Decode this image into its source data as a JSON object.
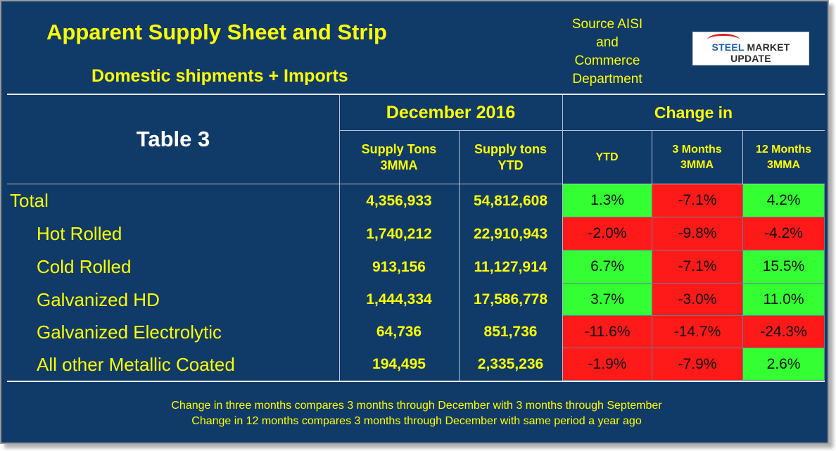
{
  "header": {
    "title": "Apparent Supply Sheet and Strip",
    "subtitle": "Domestic shipments + Imports",
    "source_lines": [
      "Source AISI",
      "and",
      "Commerce",
      "Department"
    ],
    "logo": {
      "part1": "STEEL ",
      "part2": "MARKET UPDATE"
    }
  },
  "table": {
    "label": "Table 3",
    "period_header": "December 2016",
    "change_header": "Change in",
    "columns": {
      "supply_3mma": [
        "Supply Tons",
        "3MMA"
      ],
      "supply_ytd": [
        "Supply tons",
        "YTD"
      ],
      "chg_ytd": [
        "YTD"
      ],
      "chg_3m": [
        "3 Months",
        "3MMA"
      ],
      "chg_12m": [
        "12 Months",
        "3MMA"
      ]
    },
    "rows": [
      {
        "label": "Total",
        "supply_3mma": "4,356,933",
        "supply_ytd": "54,812,608",
        "chg_ytd": "1.3%",
        "chg_3m": "-7.1%",
        "chg_12m": "4.2%"
      },
      {
        "label": "Hot Rolled",
        "supply_3mma": "1,740,212",
        "supply_ytd": "22,910,943",
        "chg_ytd": "-2.0%",
        "chg_3m": "-9.8%",
        "chg_12m": "-4.2%"
      },
      {
        "label": "Cold Rolled",
        "supply_3mma": "913,156",
        "supply_ytd": "11,127,914",
        "chg_ytd": "6.7%",
        "chg_3m": "-7.1%",
        "chg_12m": "15.5%"
      },
      {
        "label": "Galvanized HD",
        "supply_3mma": "1,444,334",
        "supply_ytd": "17,586,778",
        "chg_ytd": "3.7%",
        "chg_3m": "-3.0%",
        "chg_12m": "11.0%"
      },
      {
        "label": "Galvanized Electrolytic",
        "supply_3mma": "64,736",
        "supply_ytd": "851,736",
        "chg_ytd": "-11.6%",
        "chg_3m": "-14.7%",
        "chg_12m": "-24.3%"
      },
      {
        "label": "All other Metallic Coated",
        "supply_3mma": "194,495",
        "supply_ytd": "2,335,236",
        "chg_ytd": "-1.9%",
        "chg_3m": "-7.9%",
        "chg_12m": "2.6%"
      }
    ]
  },
  "notes": [
    "Change in three months compares 3 months through December with 3 months through September",
    "Change in 12 months compares 3 months through December with same period a year ago"
  ],
  "colors": {
    "background": "#103a68",
    "text": "#ffff00",
    "positive": "#33ff33",
    "negative": "#ff1a1a"
  }
}
